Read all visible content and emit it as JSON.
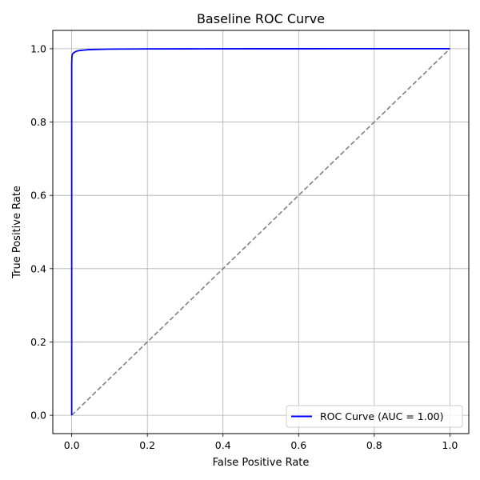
{
  "chart_data": {
    "type": "line",
    "title": "Baseline ROC Curve",
    "xlabel": "False Positive Rate",
    "ylabel": "True Positive Rate",
    "xlim": [
      -0.05,
      1.05
    ],
    "ylim": [
      -0.05,
      1.05
    ],
    "xticks": [
      0.0,
      0.2,
      0.4,
      0.6,
      0.8,
      1.0
    ],
    "yticks": [
      0.0,
      0.2,
      0.4,
      0.6,
      0.8,
      1.0
    ],
    "xtick_labels": [
      "0.0",
      "0.2",
      "0.4",
      "0.6",
      "0.8",
      "1.0"
    ],
    "ytick_labels": [
      "0.0",
      "0.2",
      "0.4",
      "0.6",
      "0.8",
      "1.0"
    ],
    "grid": true,
    "legend_position": "lower-right",
    "series": [
      {
        "name": "ROC Curve (AUC = 1.00)",
        "color": "#0000ff",
        "style": "solid",
        "x": [
          0.0,
          0.0,
          0.0005,
          0.001,
          0.002,
          0.004,
          0.007,
          0.01,
          0.015,
          0.02,
          0.03,
          0.045,
          0.06,
          0.08,
          0.1,
          0.15,
          0.2,
          0.3,
          0.5,
          0.7,
          1.0
        ],
        "y": [
          0.0,
          0.96,
          0.975,
          0.982,
          0.985,
          0.988,
          0.99,
          0.992,
          0.994,
          0.995,
          0.996,
          0.9975,
          0.998,
          0.9985,
          0.999,
          0.9993,
          0.9995,
          0.9997,
          0.9999,
          1.0,
          1.0
        ]
      },
      {
        "name": "",
        "color": "#808080",
        "style": "dashed",
        "x": [
          0.0,
          1.0
        ],
        "y": [
          0.0,
          1.0
        ]
      }
    ]
  }
}
